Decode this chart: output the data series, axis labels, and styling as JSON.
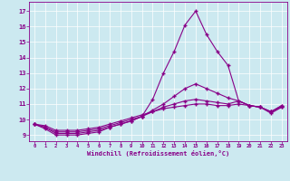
{
  "xlabel": "Windchill (Refroidissement éolien,°C)",
  "ylabel": "",
  "bg_color": "#cce9f0",
  "line_color": "#880088",
  "xlim": [
    -0.5,
    23.5
  ],
  "ylim": [
    8.6,
    17.6
  ],
  "xticks": [
    0,
    1,
    2,
    3,
    4,
    5,
    6,
    7,
    8,
    9,
    10,
    11,
    12,
    13,
    14,
    15,
    16,
    17,
    18,
    19,
    20,
    21,
    22,
    23
  ],
  "yticks": [
    9,
    10,
    11,
    12,
    13,
    14,
    15,
    16,
    17
  ],
  "series": [
    [
      9.7,
      9.4,
      9.0,
      9.0,
      9.0,
      9.1,
      9.2,
      9.5,
      9.7,
      9.9,
      10.2,
      11.3,
      13.0,
      14.4,
      16.1,
      17.0,
      15.5,
      14.4,
      13.5,
      11.2,
      10.9,
      10.8,
      10.4,
      10.8
    ],
    [
      9.7,
      9.5,
      9.1,
      9.1,
      9.1,
      9.2,
      9.3,
      9.5,
      9.7,
      9.9,
      10.2,
      10.6,
      11.0,
      11.5,
      12.0,
      12.3,
      12.0,
      11.7,
      11.4,
      11.2,
      10.9,
      10.8,
      10.5,
      10.8
    ],
    [
      9.7,
      9.5,
      9.2,
      9.2,
      9.2,
      9.3,
      9.4,
      9.6,
      9.8,
      10.0,
      10.2,
      10.5,
      10.8,
      11.0,
      11.2,
      11.3,
      11.2,
      11.1,
      11.0,
      11.2,
      10.9,
      10.8,
      10.5,
      10.9
    ],
    [
      9.7,
      9.6,
      9.3,
      9.3,
      9.3,
      9.4,
      9.5,
      9.7,
      9.9,
      10.1,
      10.3,
      10.5,
      10.7,
      10.8,
      10.9,
      11.0,
      11.0,
      10.9,
      10.9,
      11.0,
      10.9,
      10.8,
      10.5,
      10.9
    ]
  ]
}
